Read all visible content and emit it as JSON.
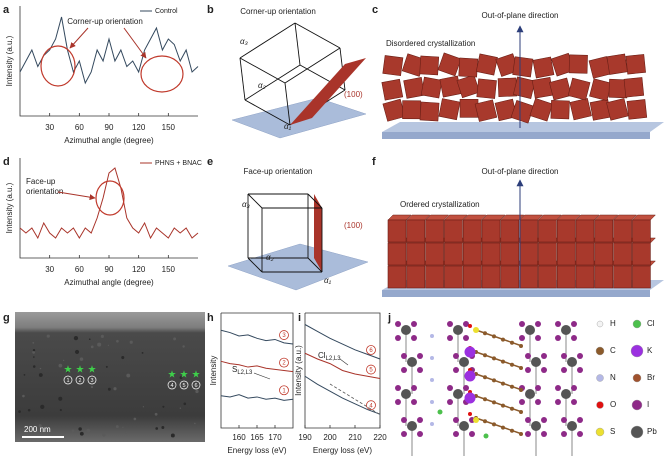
{
  "panel_labels": [
    "a",
    "b",
    "c",
    "d",
    "e",
    "f",
    "g",
    "h",
    "i",
    "j"
  ],
  "chart_data": [
    {
      "type": "line",
      "xlim": [
        0,
        180
      ],
      "xticks": [
        30,
        60,
        90,
        120,
        150
      ],
      "ylim": [
        0,
        10
      ],
      "xlabel": "Azimuthal angle (degree)",
      "ylabel": "Intensity (a.u.)",
      "annotation": [
        "Corner-up orientation"
      ],
      "x": [
        0,
        6,
        12,
        18,
        24,
        30,
        36,
        42,
        48,
        54,
        60,
        66,
        72,
        78,
        84,
        90,
        96,
        102,
        108,
        114,
        120,
        126,
        132,
        138,
        144,
        150,
        156,
        162,
        168,
        174,
        180
      ],
      "series": [
        {
          "name": "Control",
          "color": "#34495e",
          "values": [
            4,
            5,
            6,
            4.5,
            5.5,
            6,
            7,
            9,
            6,
            4,
            5,
            3,
            4,
            6,
            5,
            7,
            5,
            6,
            4.5,
            5,
            4,
            6,
            7,
            8,
            6,
            7,
            6.5,
            5,
            6,
            4,
            4.5
          ]
        }
      ]
    },
    {
      "type": "line",
      "xlim": [
        0,
        180
      ],
      "xticks": [
        30,
        60,
        90,
        120,
        150
      ],
      "ylim": [
        0,
        10
      ],
      "xlabel": "Azimuthal angle (degree)",
      "ylabel": "Intensity (a.u.)",
      "annotation": [
        "Face-up",
        "orientation"
      ],
      "x": [
        0,
        6,
        12,
        18,
        24,
        30,
        36,
        42,
        48,
        54,
        60,
        66,
        72,
        78,
        84,
        90,
        96,
        102,
        108,
        114,
        120,
        126,
        132,
        138,
        144,
        150,
        156,
        162,
        168,
        174,
        180
      ],
      "series": [
        {
          "name": "PHNS + BNAC",
          "color": "#a9342a",
          "values": [
            3,
            2.5,
            3,
            2,
            3.5,
            2.5,
            2,
            3,
            2.5,
            3,
            2,
            3,
            2.5,
            4,
            6,
            8.5,
            9,
            7,
            4,
            3,
            2.5,
            3.5,
            2,
            3,
            2.5,
            2,
            3,
            2.5,
            3,
            2,
            2.5
          ]
        }
      ]
    },
    {
      "type": "line",
      "xlim": [
        155,
        175
      ],
      "xticks": [
        160,
        165,
        170
      ],
      "ylim": [
        0,
        10
      ],
      "xlabel": "Energy loss (eV)",
      "ylabel": "Intensity",
      "annotation": {
        "text": "S",
        "sub": "L2,L3"
      },
      "x": [
        155,
        157.5,
        160,
        162.5,
        165,
        167.5,
        170,
        172.5,
        175
      ],
      "series": [
        {
          "name": "3",
          "color": "#34495e",
          "values": [
            8.5,
            8.3,
            8,
            8.1,
            7.8,
            7.6,
            7.7,
            7.4,
            7.3
          ]
        },
        {
          "name": "2",
          "color": "#a9342a",
          "values": [
            5.8,
            5.6,
            5.5,
            5.3,
            5.4,
            5.2,
            5.1,
            5,
            4.9
          ]
        },
        {
          "name": "1",
          "color": "#34495e",
          "values": [
            2.8,
            2.7,
            2.9,
            2.6,
            2.7,
            2.5,
            2.6,
            2.4,
            2.5
          ]
        }
      ]
    },
    {
      "type": "line",
      "xlim": [
        190,
        220
      ],
      "xticks": [
        190,
        200,
        210,
        220
      ],
      "ylim": [
        0,
        10
      ],
      "xlabel": "Energy loss (eV)",
      "ylabel": "Intensity (a.u.)",
      "annotation": {
        "text": "Cl",
        "sub": "L2,L3"
      },
      "x": [
        190,
        195,
        200,
        205,
        210,
        215,
        220
      ],
      "series": [
        {
          "name": "6",
          "color": "#34495e",
          "values": [
            9,
            8.4,
            7.8,
            7.3,
            6.8,
            6.4,
            6
          ]
        },
        {
          "name": "5",
          "color": "#a9342a",
          "values": [
            6.5,
            6,
            5.6,
            5,
            4.7,
            4.5,
            4.3
          ]
        },
        {
          "name": "4",
          "color": "#34495e",
          "values": [
            4.5,
            3.8,
            3.2,
            2.6,
            2.1,
            1.6,
            1.2
          ]
        }
      ]
    }
  ],
  "diagrams": {
    "b": {
      "title": "Corner-up orientation",
      "axes": [
        "α₃",
        "α₂",
        "α₁"
      ],
      "plane": "(100)"
    },
    "c": {
      "direction": "Out-of-plane direction",
      "caption": "Disordered crystallization"
    },
    "e": {
      "title": "Face-up orientation",
      "axes": [
        "α₃",
        "α₂",
        "α₁"
      ],
      "plane": "(100)"
    },
    "f": {
      "direction": "Out-of-plane direction",
      "caption": "Ordered crystallization"
    },
    "g": {
      "scale_bar": "200 nm",
      "markers": [
        "1",
        "2",
        "3",
        "4",
        "5",
        "6"
      ]
    },
    "j": {
      "legend": [
        {
          "symbol": "H",
          "color": "#f4f4f4"
        },
        {
          "symbol": "Cl",
          "color": "#4cc04c"
        },
        {
          "symbol": "C",
          "color": "#8b5a2b"
        },
        {
          "symbol": "K",
          "color": "#9b30e0"
        },
        {
          "symbol": "N",
          "color": "#b4b8e6"
        },
        {
          "symbol": "Br",
          "color": "#a0522d"
        },
        {
          "symbol": "O",
          "color": "#e01010"
        },
        {
          "symbol": "I",
          "color": "#8e2a88"
        },
        {
          "symbol": "S",
          "color": "#ece030"
        },
        {
          "symbol": "Pb",
          "color": "#555555"
        }
      ]
    }
  }
}
